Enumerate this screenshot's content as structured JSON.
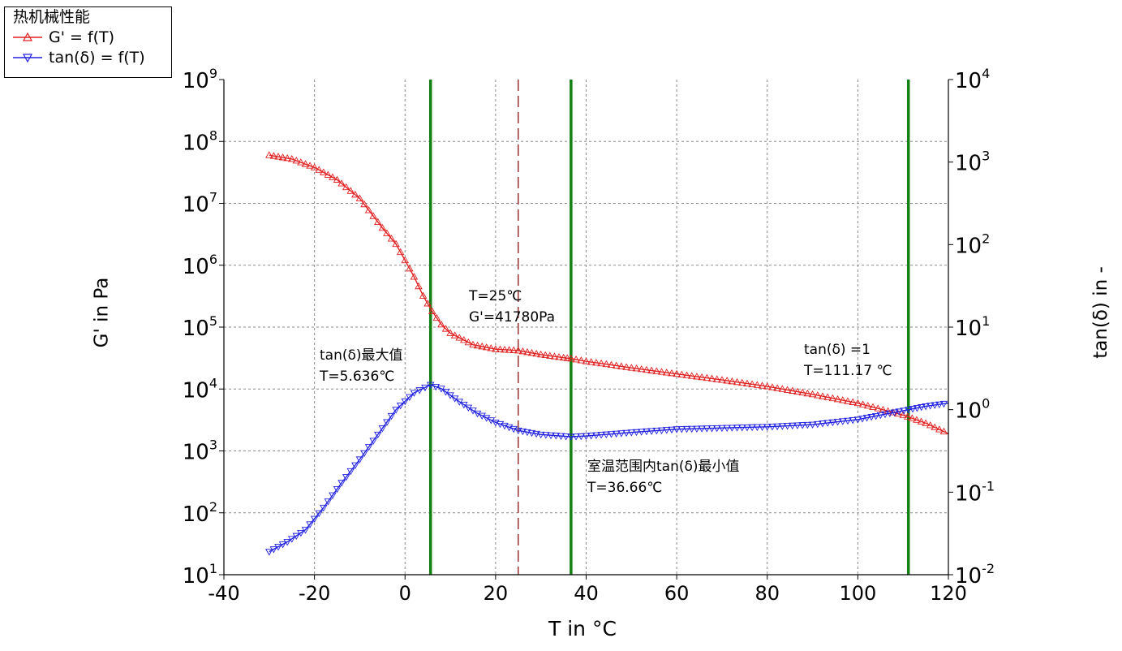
{
  "legend": {
    "title": "热机械性能",
    "items": [
      {
        "label": "G' = f(T)",
        "color": "#e02020",
        "marker": "triangle-up"
      },
      {
        "label": "tan(δ) = f(T)",
        "color": "#2020e0",
        "marker": "triangle-down"
      }
    ]
  },
  "annotations": {
    "room_temp_line1": "T=25℃",
    "room_temp_line2": "G'=41780Pa",
    "tan_max_line1": "tan(δ)最大值",
    "tan_max_line2": "T=5.636℃",
    "tan_min_line1": "室温范围内tan(δ)最小值",
    "tan_min_line2": "T=36.66℃",
    "tan_one_line1": "tan(δ) =1",
    "tan_one_line2": "T=111.17 ℃"
  },
  "chart_data": {
    "type": "line",
    "title": "",
    "xlabel": "T in °C",
    "ylabel_left": "G' in Pa",
    "ylabel_right": "tan(δ) in -",
    "xlim": [
      -40,
      120
    ],
    "xticks": [
      -40,
      -20,
      0,
      20,
      40,
      60,
      80,
      100,
      120
    ],
    "ylim_left": [
      10,
      1000000000
    ],
    "yscale_left": "log",
    "yticks_left_exp": [
      1,
      2,
      3,
      4,
      5,
      6,
      7,
      8,
      9
    ],
    "ylim_right": [
      0.01,
      10000
    ],
    "yscale_right": "log",
    "yticks_right_exp": [
      -2,
      -1,
      0,
      1,
      2,
      3,
      4
    ],
    "grid": true,
    "legend_position": "top-left",
    "vertical_lines": [
      {
        "x": 5.636,
        "color": "#138013",
        "style": "solid"
      },
      {
        "x": 36.66,
        "color": "#138013",
        "style": "solid"
      },
      {
        "x": 111.17,
        "color": "#138013",
        "style": "solid"
      },
      {
        "x": 25,
        "color": "#9a3030",
        "style": "dashed"
      }
    ],
    "series": [
      {
        "name": "G' = f(T)",
        "axis": "left",
        "color": "#e02020",
        "marker": "triangle-up",
        "x": [
          -30,
          -25,
          -20,
          -15,
          -10,
          -5,
          -2,
          0,
          2,
          4,
          6,
          8,
          10,
          15,
          20,
          25,
          30,
          35,
          36.66,
          40,
          50,
          60,
          70,
          80,
          90,
          100,
          110,
          115,
          120
        ],
        "y": [
          60000000,
          52000000,
          38000000,
          24000000,
          12000000,
          4000000,
          2200000,
          1200000,
          650000,
          320000,
          180000,
          110000,
          80000,
          52000,
          44000,
          41780,
          36000,
          32000,
          31000,
          28000,
          22000,
          17500,
          14000,
          11000,
          8200,
          5900,
          3800,
          2800,
          1900
        ]
      },
      {
        "name": "tan(δ) = f(T)",
        "axis": "right",
        "color": "#2020e0",
        "marker": "triangle-down",
        "x": [
          -30,
          -26,
          -22,
          -18,
          -14,
          -10,
          -6,
          -2,
          2,
          5.636,
          8,
          12,
          16,
          20,
          25,
          30,
          36.66,
          40,
          50,
          60,
          70,
          80,
          90,
          100,
          105,
          111.17,
          115,
          120
        ],
        "y": [
          0.019,
          0.025,
          0.035,
          0.065,
          0.13,
          0.25,
          0.5,
          1.0,
          1.6,
          2.0,
          1.8,
          1.25,
          0.9,
          0.7,
          0.56,
          0.5,
          0.47,
          0.48,
          0.53,
          0.58,
          0.6,
          0.62,
          0.66,
          0.76,
          0.86,
          1.0,
          1.1,
          1.2
        ]
      }
    ]
  }
}
